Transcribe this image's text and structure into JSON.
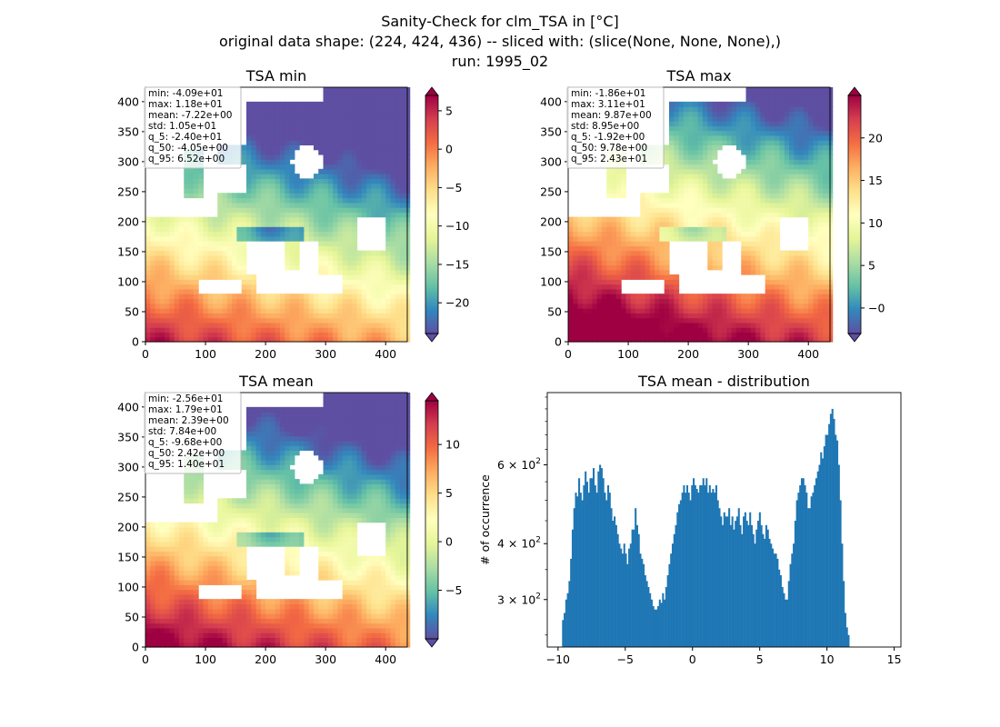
{
  "figure": {
    "title_lines": [
      "Sanity-Check for clm_TSA in [°C]",
      "original data shape: (224, 424, 436) -- sliced with: (slice(None, None, None),)",
      "run: 1995_02"
    ]
  },
  "chart_data": [
    {
      "type": "heatmap",
      "title": "TSA min",
      "xlim": [
        0,
        436
      ],
      "ylim": [
        0,
        424
      ],
      "xticks": [
        0,
        100,
        200,
        300,
        400
      ],
      "yticks": [
        0,
        50,
        100,
        150,
        200,
        250,
        300,
        350,
        400
      ],
      "colormap": "Spectral_r",
      "colorbar": {
        "vmin": -24,
        "vmax": 7,
        "ticks": [
          5,
          0,
          -5,
          -10,
          -15,
          -20
        ],
        "tick_labels": [
          "5",
          "0",
          "−5",
          "−10",
          "−15",
          "−20"
        ]
      },
      "stats": [
        "min: -4.09e+01",
        "max: 1.18e+01",
        "mean: -7.22e+00",
        "std: 1.05e+01",
        "q_5: -2.40e+01",
        "q_50: -4.05e+00",
        "q_95: 6.52e+00"
      ]
    },
    {
      "type": "heatmap",
      "title": "TSA max",
      "xlim": [
        0,
        436
      ],
      "ylim": [
        0,
        424
      ],
      "xticks": [
        0,
        100,
        200,
        300,
        400
      ],
      "yticks": [
        0,
        50,
        100,
        150,
        200,
        250,
        300,
        350,
        400
      ],
      "colormap": "Spectral_r",
      "colorbar": {
        "vmin": -3,
        "vmax": 25,
        "ticks": [
          20,
          15,
          10,
          5,
          0
        ],
        "tick_labels": [
          "20",
          "15",
          "10",
          "5",
          "−0"
        ]
      },
      "stats": [
        "min: -1.86e+01",
        "max: 3.11e+01",
        "mean: 9.87e+00",
        "std: 8.95e+00",
        "q_5: -1.92e+00",
        "q_50: 9.78e+00",
        "q_95: 2.43e+01"
      ]
    },
    {
      "type": "heatmap",
      "title": "TSA mean",
      "xlim": [
        0,
        436
      ],
      "ylim": [
        0,
        424
      ],
      "xticks": [
        0,
        100,
        200,
        300,
        400
      ],
      "yticks": [
        0,
        50,
        100,
        150,
        200,
        250,
        300,
        350,
        400
      ],
      "colormap": "Spectral_r",
      "colorbar": {
        "vmin": -10,
        "vmax": 14.5,
        "ticks": [
          10,
          5,
          0,
          -5
        ],
        "tick_labels": [
          "10",
          "5",
          "0",
          "−5"
        ]
      },
      "stats": [
        "min: -2.56e+01",
        "max: 1.79e+01",
        "mean: 2.39e+00",
        "std: 7.84e+00",
        "q_5: -9.68e+00",
        "q_50: 2.42e+00",
        "q_95: 1.40e+01"
      ]
    },
    {
      "type": "bar",
      "title": "TSA mean - distribution",
      "ylabel": "# of occurrence",
      "xlim": [
        -10.8,
        15.5
      ],
      "ylim": [
        235,
        870
      ],
      "yscale": "log",
      "color": "#1f77b4",
      "xticks": [
        -10,
        -5,
        0,
        5,
        10,
        15
      ],
      "xtick_labels": [
        "−10",
        "−5",
        "0",
        "5",
        "10",
        "15"
      ],
      "yticks": [
        {
          "value": 300,
          "mantissa": "3",
          "exponent": "2"
        },
        {
          "value": 400,
          "mantissa": "4",
          "exponent": "2"
        },
        {
          "value": 600,
          "mantissa": "6",
          "exponent": "2"
        }
      ],
      "bins": {
        "start": -9.7,
        "width": 0.12
      },
      "values": [
        270,
        280,
        300,
        310,
        330,
        370,
        430,
        480,
        520,
        510,
        560,
        520,
        500,
        540,
        580,
        550,
        520,
        560,
        560,
        590,
        540,
        520,
        580,
        600,
        590,
        560,
        520,
        500,
        540,
        520,
        480,
        450,
        460,
        440,
        420,
        400,
        390,
        380,
        400,
        380,
        360,
        390,
        400,
        430,
        430,
        480,
        440,
        420,
        380,
        370,
        360,
        340,
        330,
        320,
        310,
        300,
        290,
        285,
        285,
        290,
        300,
        295,
        310,
        300,
        320,
        340,
        360,
        380,
        400,
        420,
        440,
        470,
        490,
        500,
        520,
        540,
        520,
        540,
        520,
        500,
        540,
        560,
        540,
        530,
        520,
        540,
        540,
        560,
        540,
        560,
        520,
        540,
        520,
        530,
        520,
        540,
        500,
        480,
        460,
        440,
        470,
        460,
        460,
        480,
        440,
        460,
        430,
        450,
        460,
        480,
        440,
        420,
        460,
        470,
        450,
        440,
        470,
        440,
        420,
        400,
        430,
        450,
        470,
        440,
        420,
        410,
        440,
        430,
        410,
        400,
        390,
        380,
        380,
        370,
        350,
        340,
        320,
        310,
        300,
        300,
        330,
        360,
        380,
        400,
        450,
        500,
        520,
        540,
        560,
        560,
        540,
        520,
        480,
        480,
        510,
        520,
        540,
        560,
        580,
        600,
        640,
        620,
        660,
        700,
        700,
        740,
        780,
        800,
        760,
        700,
        680,
        600,
        500,
        400,
        330,
        280,
        260,
        250
      ]
    }
  ]
}
